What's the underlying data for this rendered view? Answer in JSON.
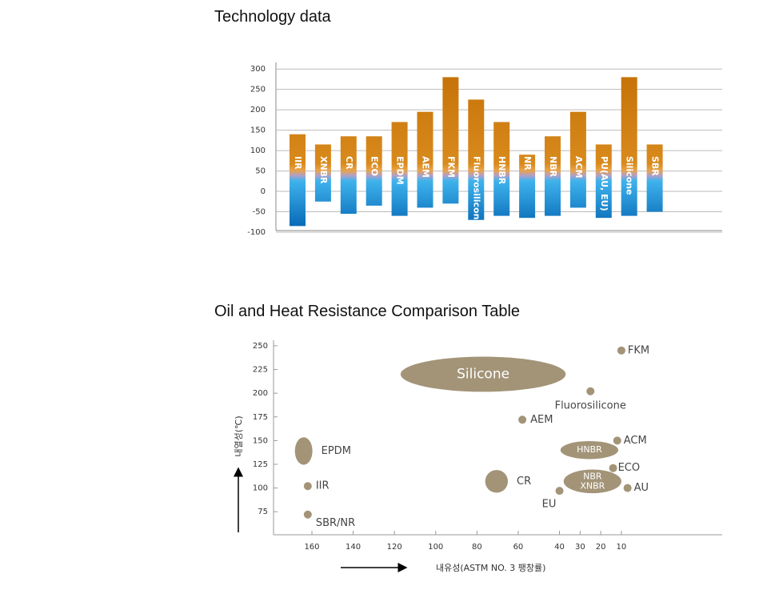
{
  "chart_data": [
    {
      "type": "range-bar",
      "title": "Technology data",
      "categories": [
        "IIR",
        "XNBR",
        "CR",
        "ECO",
        "EPDM",
        "AEM",
        "FKM",
        "Fluorosilicone",
        "HNBR",
        "NR",
        "NBR",
        "ACM",
        "PU(AU, EU)",
        "Silicone",
        "SBR"
      ],
      "low": [
        -85,
        -25,
        -55,
        -35,
        -60,
        -40,
        -30,
        -70,
        -60,
        -65,
        -60,
        -40,
        -65,
        -60,
        -50
      ],
      "high": [
        140,
        115,
        135,
        135,
        170,
        195,
        280,
        225,
        170,
        90,
        135,
        195,
        115,
        280,
        115
      ],
      "ylim": [
        -100,
        320
      ],
      "yticks": [
        300,
        250,
        200,
        150,
        100,
        50,
        0,
        -50,
        -100
      ],
      "grid": true
    },
    {
      "type": "bubble",
      "title": "Oil and Heat Resistance Comparison Table",
      "x_label": "내유성(ASTM NO. 3 팽창률)",
      "y_label": "내열성(℃)",
      "color": "#a39478",
      "points": [
        {
          "label": "FKM",
          "x": 10,
          "y": 245
        },
        {
          "label": "Silicone",
          "x": 77,
          "y": 220,
          "width": 80,
          "height": 37
        },
        {
          "label": "Fluorosilicone",
          "x": 25,
          "y": 202
        },
        {
          "label": "AEM",
          "x": 58,
          "y": 172
        },
        {
          "label": "ACM",
          "x": 12,
          "y": 150
        },
        {
          "label": "HNBR",
          "x": 25.5,
          "y": 140,
          "width": 28,
          "height": 19
        },
        {
          "label": "ECO",
          "x": 14,
          "y": 121
        },
        {
          "label": [
            "NBR",
            "XNBR"
          ],
          "x": 24,
          "y": 107,
          "width": 28,
          "height": 25
        },
        {
          "label": "AU",
          "x": 7,
          "y": 100
        },
        {
          "label": "EU",
          "x": 40,
          "y": 97
        },
        {
          "label": "CR",
          "x": 70.5,
          "y": 107,
          "width": 11,
          "height": 24
        },
        {
          "label": "EPDM",
          "x": 164,
          "y": 139,
          "width": 8.5,
          "height": 29
        },
        {
          "label": "IIR",
          "x": 162,
          "y": 102
        },
        {
          "label": "SBR/NR",
          "x": 162,
          "y": 72
        }
      ],
      "xlim": [
        180,
        -35
      ],
      "ylim": [
        50,
        255
      ],
      "xticks": [
        160,
        140,
        120,
        100,
        80,
        60,
        40,
        30,
        20,
        10
      ],
      "yticks": [
        250,
        225,
        200,
        175,
        150,
        125,
        100,
        75
      ]
    }
  ]
}
